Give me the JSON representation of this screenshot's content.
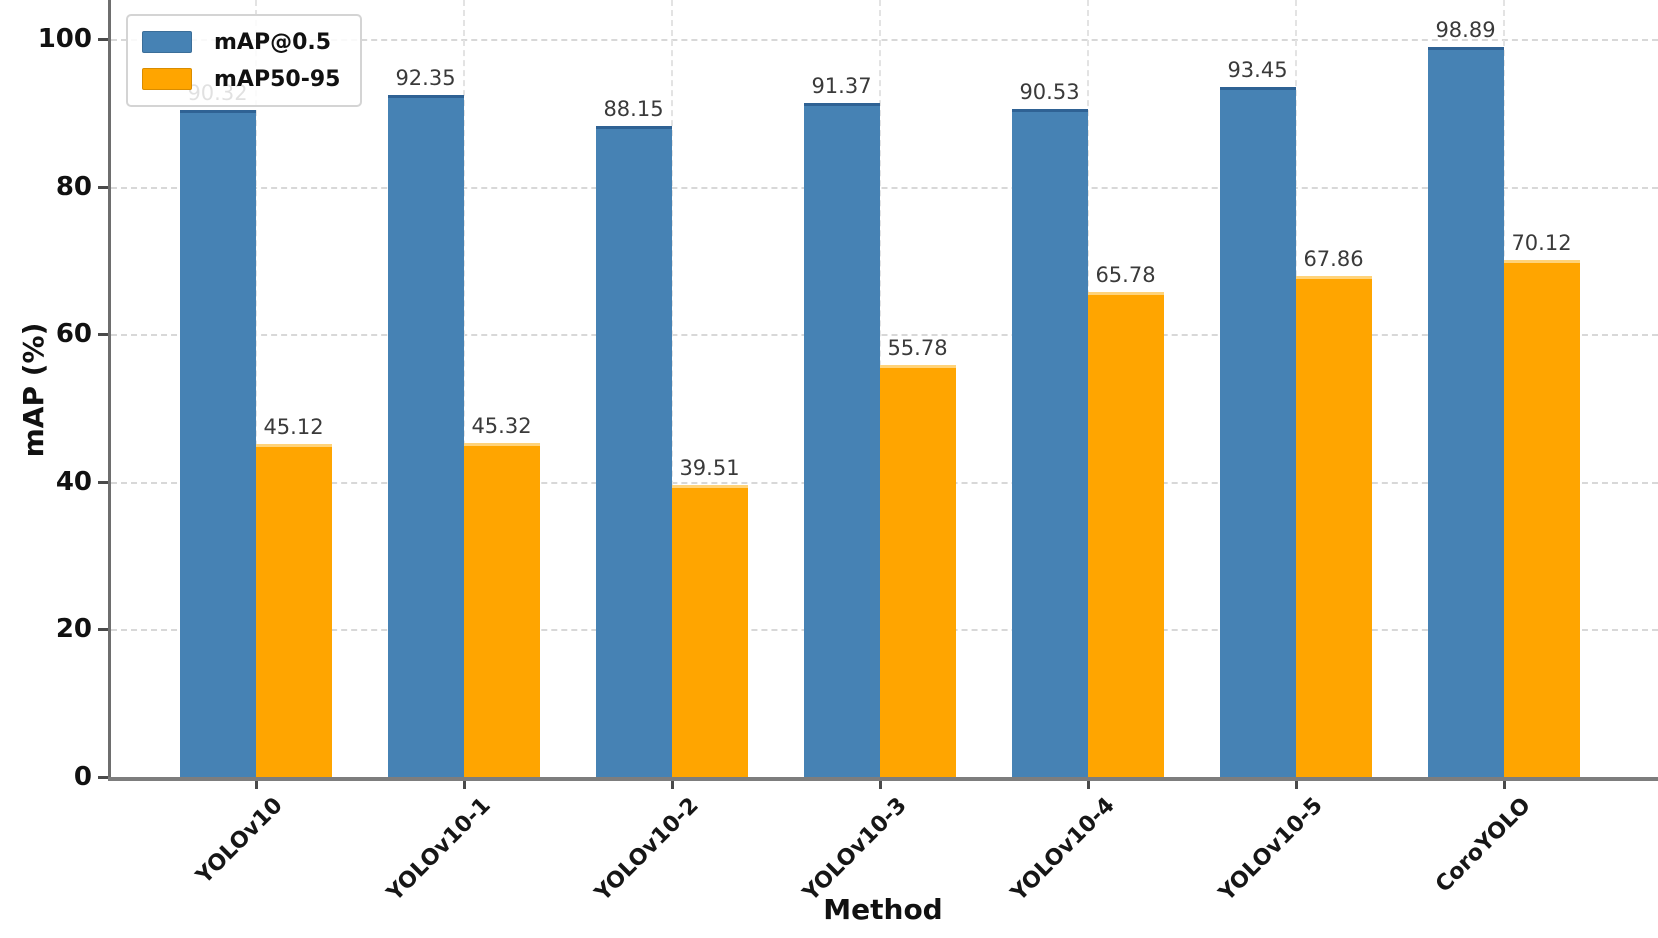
{
  "chart_data": {
    "type": "bar",
    "title": "",
    "xlabel": "Method",
    "ylabel": "mAP (%)",
    "categories": [
      "YOLOv10",
      "YOLOv10-1",
      "YOLOv10-2",
      "YOLOv10-3",
      "YOLOv10-4",
      "YOLOv10-5",
      "CoroYOLO"
    ],
    "series": [
      {
        "name": "mAP@0.5",
        "color": "#4682B4",
        "edge_color": "#2f6294",
        "values": [
          90.32,
          92.35,
          88.15,
          91.37,
          90.53,
          93.45,
          98.89
        ]
      },
      {
        "name": "mAP50-95",
        "color": "#FFA500",
        "edge_color": "#ffd37a",
        "values": [
          45.12,
          45.32,
          39.51,
          55.78,
          65.78,
          67.86,
          70.12
        ]
      }
    ],
    "yticks": [
      0,
      20,
      40,
      60,
      80,
      100
    ],
    "ylim": [
      0,
      105
    ],
    "grid": "dashed, horizontal and vertical, light gray",
    "legend_position": "upper left",
    "value_labels": true,
    "value_label_note": "first blue bar label 90.32 partially hidden behind legend"
  }
}
